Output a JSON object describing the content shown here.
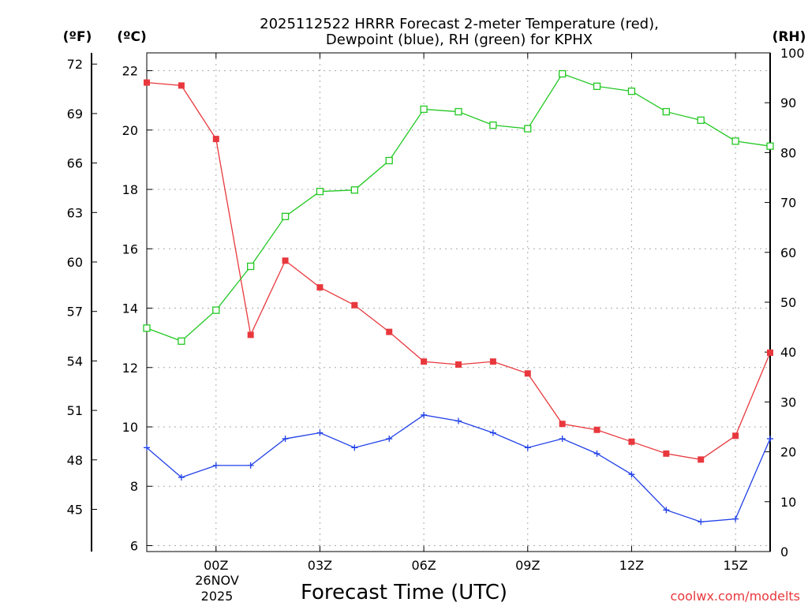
{
  "chart_data": {
    "type": "line",
    "title": [
      "2025112522 HRRR Forecast 2-meter Temperature (red),",
      "Dewpoint (blue), RH (green) for KPHX"
    ],
    "xlabel": "Forecast Time (UTC)",
    "credit": "coolwx.com/modelts",
    "date_label": [
      "26NOV",
      "2025"
    ],
    "x": [
      -2,
      -1,
      0,
      1,
      2,
      3,
      4,
      5,
      6,
      7,
      8,
      9,
      10,
      11,
      12,
      13,
      14,
      15,
      16
    ],
    "x_tick_labels": [
      "00Z",
      "03Z",
      "06Z",
      "09Z",
      "12Z",
      "15Z"
    ],
    "x_ticks": [
      0,
      3,
      6,
      9,
      12,
      15
    ],
    "xlim": [
      -2,
      16
    ],
    "y_left_celsius": {
      "label": "(ºC)",
      "ylim": [
        5.8,
        22.6
      ],
      "ticks": [
        6,
        8,
        10,
        12,
        14,
        16,
        18,
        20,
        22
      ]
    },
    "y_left_fahrenheit": {
      "label": "(ºF)",
      "ticks": [
        45,
        48,
        51,
        54,
        57,
        60,
        63,
        66,
        69,
        72
      ]
    },
    "y_right_rh": {
      "label": "(RH)",
      "ylim": [
        0,
        100
      ],
      "ticks": [
        0,
        10,
        20,
        30,
        40,
        50,
        60,
        70,
        80,
        90,
        100
      ]
    },
    "series": [
      {
        "name": "2-meter Temperature",
        "axis": "celsius",
        "color": "#e8383d",
        "marker": "filled-square",
        "values": [
          21.6,
          21.5,
          19.7,
          13.1,
          15.6,
          14.7,
          14.1,
          13.2,
          12.2,
          12.1,
          12.2,
          11.8,
          10.1,
          9.9,
          9.5,
          9.1,
          8.9,
          9.7,
          12.5
        ]
      },
      {
        "name": "Dewpoint",
        "axis": "celsius",
        "color": "#2040e8",
        "marker": "plus",
        "values": [
          9.3,
          8.3,
          8.7,
          8.7,
          9.6,
          9.8,
          9.3,
          9.6,
          10.4,
          10.2,
          9.8,
          9.3,
          9.6,
          9.1,
          8.4,
          7.2,
          6.8,
          6.9,
          9.6
        ]
      },
      {
        "name": "RH",
        "axis": "rh",
        "color": "#22c822",
        "marker": "open-square",
        "values": [
          44.8,
          42.2,
          48.4,
          57.2,
          67.2,
          72.2,
          72.5,
          78.4,
          88.7,
          88.2,
          85.5,
          84.8,
          95.8,
          93.3,
          92.3,
          88.2,
          86.5,
          82.3,
          81.3
        ]
      }
    ]
  }
}
